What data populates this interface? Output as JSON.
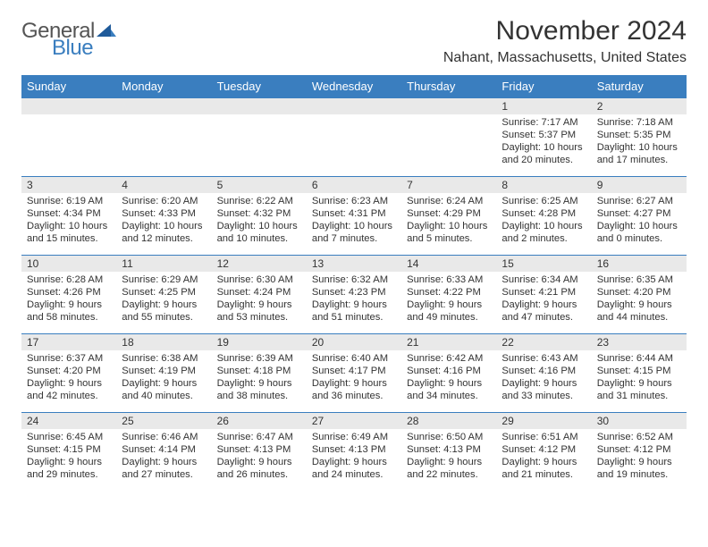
{
  "logo": {
    "text1": "General",
    "text2": "Blue"
  },
  "title": "November 2024",
  "location": "Nahant, Massachusetts, United States",
  "colors": {
    "header_bg": "#3a7ebf",
    "header_fg": "#ffffff",
    "daynum_bg": "#e9e9e9",
    "border": "#3a7ebf",
    "text": "#333333",
    "background": "#ffffff"
  },
  "columns": [
    "Sunday",
    "Monday",
    "Tuesday",
    "Wednesday",
    "Thursday",
    "Friday",
    "Saturday"
  ],
  "weeks": [
    [
      {
        "n": "",
        "sunrise": "",
        "sunset": "",
        "daylight": ""
      },
      {
        "n": "",
        "sunrise": "",
        "sunset": "",
        "daylight": ""
      },
      {
        "n": "",
        "sunrise": "",
        "sunset": "",
        "daylight": ""
      },
      {
        "n": "",
        "sunrise": "",
        "sunset": "",
        "daylight": ""
      },
      {
        "n": "",
        "sunrise": "",
        "sunset": "",
        "daylight": ""
      },
      {
        "n": "1",
        "sunrise": "Sunrise: 7:17 AM",
        "sunset": "Sunset: 5:37 PM",
        "daylight": "Daylight: 10 hours and 20 minutes."
      },
      {
        "n": "2",
        "sunrise": "Sunrise: 7:18 AM",
        "sunset": "Sunset: 5:35 PM",
        "daylight": "Daylight: 10 hours and 17 minutes."
      }
    ],
    [
      {
        "n": "3",
        "sunrise": "Sunrise: 6:19 AM",
        "sunset": "Sunset: 4:34 PM",
        "daylight": "Daylight: 10 hours and 15 minutes."
      },
      {
        "n": "4",
        "sunrise": "Sunrise: 6:20 AM",
        "sunset": "Sunset: 4:33 PM",
        "daylight": "Daylight: 10 hours and 12 minutes."
      },
      {
        "n": "5",
        "sunrise": "Sunrise: 6:22 AM",
        "sunset": "Sunset: 4:32 PM",
        "daylight": "Daylight: 10 hours and 10 minutes."
      },
      {
        "n": "6",
        "sunrise": "Sunrise: 6:23 AM",
        "sunset": "Sunset: 4:31 PM",
        "daylight": "Daylight: 10 hours and 7 minutes."
      },
      {
        "n": "7",
        "sunrise": "Sunrise: 6:24 AM",
        "sunset": "Sunset: 4:29 PM",
        "daylight": "Daylight: 10 hours and 5 minutes."
      },
      {
        "n": "8",
        "sunrise": "Sunrise: 6:25 AM",
        "sunset": "Sunset: 4:28 PM",
        "daylight": "Daylight: 10 hours and 2 minutes."
      },
      {
        "n": "9",
        "sunrise": "Sunrise: 6:27 AM",
        "sunset": "Sunset: 4:27 PM",
        "daylight": "Daylight: 10 hours and 0 minutes."
      }
    ],
    [
      {
        "n": "10",
        "sunrise": "Sunrise: 6:28 AM",
        "sunset": "Sunset: 4:26 PM",
        "daylight": "Daylight: 9 hours and 58 minutes."
      },
      {
        "n": "11",
        "sunrise": "Sunrise: 6:29 AM",
        "sunset": "Sunset: 4:25 PM",
        "daylight": "Daylight: 9 hours and 55 minutes."
      },
      {
        "n": "12",
        "sunrise": "Sunrise: 6:30 AM",
        "sunset": "Sunset: 4:24 PM",
        "daylight": "Daylight: 9 hours and 53 minutes."
      },
      {
        "n": "13",
        "sunrise": "Sunrise: 6:32 AM",
        "sunset": "Sunset: 4:23 PM",
        "daylight": "Daylight: 9 hours and 51 minutes."
      },
      {
        "n": "14",
        "sunrise": "Sunrise: 6:33 AM",
        "sunset": "Sunset: 4:22 PM",
        "daylight": "Daylight: 9 hours and 49 minutes."
      },
      {
        "n": "15",
        "sunrise": "Sunrise: 6:34 AM",
        "sunset": "Sunset: 4:21 PM",
        "daylight": "Daylight: 9 hours and 47 minutes."
      },
      {
        "n": "16",
        "sunrise": "Sunrise: 6:35 AM",
        "sunset": "Sunset: 4:20 PM",
        "daylight": "Daylight: 9 hours and 44 minutes."
      }
    ],
    [
      {
        "n": "17",
        "sunrise": "Sunrise: 6:37 AM",
        "sunset": "Sunset: 4:20 PM",
        "daylight": "Daylight: 9 hours and 42 minutes."
      },
      {
        "n": "18",
        "sunrise": "Sunrise: 6:38 AM",
        "sunset": "Sunset: 4:19 PM",
        "daylight": "Daylight: 9 hours and 40 minutes."
      },
      {
        "n": "19",
        "sunrise": "Sunrise: 6:39 AM",
        "sunset": "Sunset: 4:18 PM",
        "daylight": "Daylight: 9 hours and 38 minutes."
      },
      {
        "n": "20",
        "sunrise": "Sunrise: 6:40 AM",
        "sunset": "Sunset: 4:17 PM",
        "daylight": "Daylight: 9 hours and 36 minutes."
      },
      {
        "n": "21",
        "sunrise": "Sunrise: 6:42 AM",
        "sunset": "Sunset: 4:16 PM",
        "daylight": "Daylight: 9 hours and 34 minutes."
      },
      {
        "n": "22",
        "sunrise": "Sunrise: 6:43 AM",
        "sunset": "Sunset: 4:16 PM",
        "daylight": "Daylight: 9 hours and 33 minutes."
      },
      {
        "n": "23",
        "sunrise": "Sunrise: 6:44 AM",
        "sunset": "Sunset: 4:15 PM",
        "daylight": "Daylight: 9 hours and 31 minutes."
      }
    ],
    [
      {
        "n": "24",
        "sunrise": "Sunrise: 6:45 AM",
        "sunset": "Sunset: 4:15 PM",
        "daylight": "Daylight: 9 hours and 29 minutes."
      },
      {
        "n": "25",
        "sunrise": "Sunrise: 6:46 AM",
        "sunset": "Sunset: 4:14 PM",
        "daylight": "Daylight: 9 hours and 27 minutes."
      },
      {
        "n": "26",
        "sunrise": "Sunrise: 6:47 AM",
        "sunset": "Sunset: 4:13 PM",
        "daylight": "Daylight: 9 hours and 26 minutes."
      },
      {
        "n": "27",
        "sunrise": "Sunrise: 6:49 AM",
        "sunset": "Sunset: 4:13 PM",
        "daylight": "Daylight: 9 hours and 24 minutes."
      },
      {
        "n": "28",
        "sunrise": "Sunrise: 6:50 AM",
        "sunset": "Sunset: 4:13 PM",
        "daylight": "Daylight: 9 hours and 22 minutes."
      },
      {
        "n": "29",
        "sunrise": "Sunrise: 6:51 AM",
        "sunset": "Sunset: 4:12 PM",
        "daylight": "Daylight: 9 hours and 21 minutes."
      },
      {
        "n": "30",
        "sunrise": "Sunrise: 6:52 AM",
        "sunset": "Sunset: 4:12 PM",
        "daylight": "Daylight: 9 hours and 19 minutes."
      }
    ]
  ]
}
